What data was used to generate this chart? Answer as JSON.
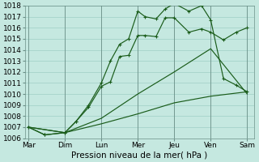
{
  "xlabel": "Pression niveau de la mer( hPa )",
  "x_labels": [
    "Mar",
    "Dim",
    "Lun",
    "Mer",
    "Jeu",
    "Ven",
    "Sam"
  ],
  "ylim": [
    1006,
    1018
  ],
  "yticks": [
    1006,
    1007,
    1008,
    1009,
    1010,
    1011,
    1012,
    1013,
    1014,
    1015,
    1016,
    1017,
    1018
  ],
  "background_color": "#c5e8e0",
  "grid_color": "#9fcfc5",
  "line_color": "#1a5c1a",
  "line1_x": [
    0,
    1,
    2,
    3,
    4,
    5,
    6
  ],
  "line1_y": [
    1007.0,
    1006.5,
    1007.3,
    1008.2,
    1009.2,
    1009.8,
    1010.2
  ],
  "line2_x": [
    0,
    1,
    2,
    3,
    4,
    5,
    6
  ],
  "line2_y": [
    1007.0,
    1006.5,
    1007.8,
    1010.0,
    1012.0,
    1014.1,
    1010.0
  ],
  "line3_x": [
    0,
    0.45,
    1.0,
    1.3,
    1.65,
    2.0,
    2.25,
    2.5,
    2.75,
    3.0,
    3.2,
    3.5,
    3.75,
    4.0,
    4.4,
    4.75,
    5.0,
    5.35,
    5.7,
    6.0
  ],
  "line3_y": [
    1007.0,
    1006.3,
    1006.5,
    1007.5,
    1008.8,
    1010.7,
    1011.1,
    1013.4,
    1013.5,
    1015.3,
    1015.3,
    1015.2,
    1016.9,
    1016.9,
    1015.6,
    1015.9,
    1015.6,
    1014.9,
    1015.6,
    1016.0
  ],
  "line4_x": [
    0,
    0.45,
    1.0,
    1.3,
    1.65,
    2.0,
    2.25,
    2.5,
    2.75,
    3.0,
    3.2,
    3.5,
    3.75,
    4.0,
    4.4,
    4.75,
    5.0,
    5.35,
    5.7,
    6.0
  ],
  "line4_y": [
    1007.0,
    1006.3,
    1006.5,
    1007.5,
    1009.0,
    1011.0,
    1013.0,
    1014.5,
    1015.0,
    1017.5,
    1017.0,
    1016.8,
    1017.7,
    1018.2,
    1017.5,
    1018.0,
    1016.7,
    1011.4,
    1010.8,
    1010.2
  ]
}
